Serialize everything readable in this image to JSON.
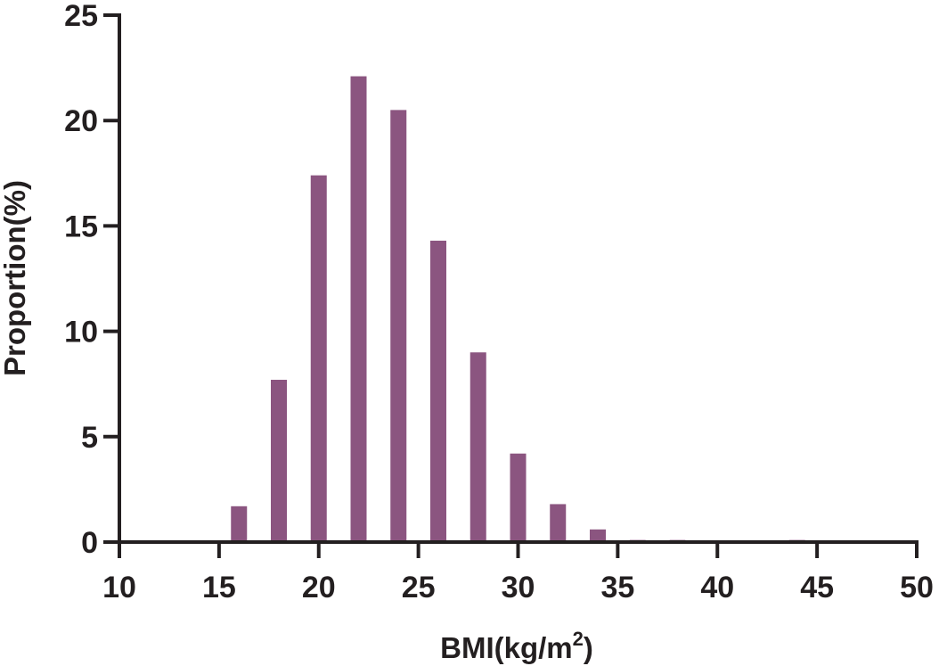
{
  "chart_data": {
    "type": "bar",
    "title": "",
    "xlabel": "BMI(kg/m",
    "xlabel_superscript": "2",
    "xlabel_close": ")",
    "ylabel": "Proportion(%)",
    "xlim": [
      10,
      50
    ],
    "ylim": [
      0,
      25
    ],
    "xticks": [
      10,
      15,
      20,
      25,
      30,
      35,
      40,
      45,
      50
    ],
    "yticks": [
      0,
      5,
      10,
      15,
      20,
      25
    ],
    "grid": false,
    "bar_color": "#8b5580",
    "axis_color": "#231f20",
    "x": [
      16,
      18,
      20,
      22,
      24,
      26,
      28,
      30,
      32,
      34,
      36,
      38,
      40,
      42,
      44,
      46,
      48
    ],
    "values": [
      1.7,
      7.7,
      17.4,
      22.1,
      20.5,
      14.3,
      9.0,
      4.2,
      1.8,
      0.6,
      0.1,
      0.1,
      0.05,
      0.05,
      0.1,
      0.02,
      0.05
    ]
  }
}
